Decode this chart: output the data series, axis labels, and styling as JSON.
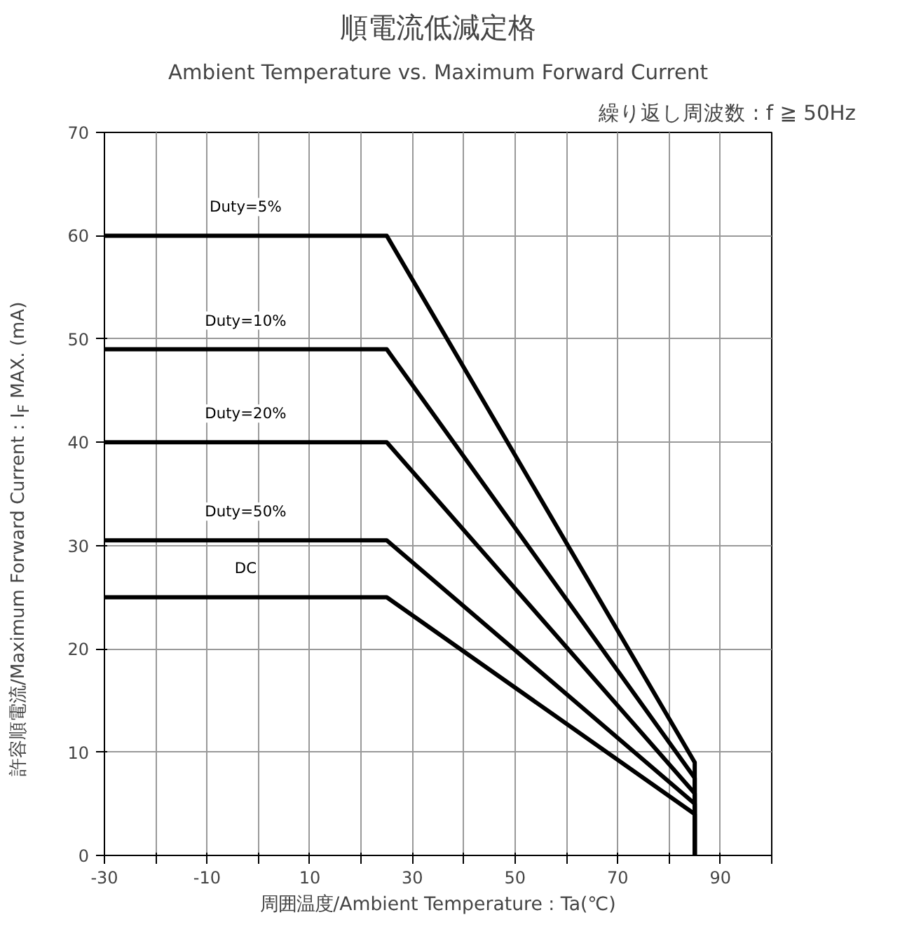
{
  "chart_data": {
    "type": "line",
    "title": "順電流低減定格",
    "subtitle": "Ambient Temperature vs. Maximum Forward Current",
    "xlabel": "周囲温度/Ambient Temperature : Ta(℃)",
    "ylabel": "許容順電流/Maximum Forward Current : I$_{F}$ MAX. (mA)",
    "annotations": [
      "繰り返し周波数 : f ≧ 50Hz"
    ],
    "series": [
      {
        "name": "Duty=5%",
        "color": "#000000",
        "x": [
          -30,
          25,
          85,
          85
        ],
        "values": [
          60,
          60,
          9,
          0
        ]
      },
      {
        "name": "Duty=10%",
        "color": "#000000",
        "x": [
          -30,
          25,
          85,
          85
        ],
        "values": [
          49,
          49,
          7.5,
          0
        ]
      },
      {
        "name": "Duty=20%",
        "color": "#000000",
        "x": [
          -30,
          25,
          85,
          85
        ],
        "values": [
          40,
          40,
          6,
          0
        ]
      },
      {
        "name": "Duty=50%",
        "color": "#000000",
        "x": [
          -30,
          25,
          85,
          85
        ],
        "values": [
          30.5,
          30.5,
          5,
          0
        ]
      },
      {
        "name": "DC",
        "color": "#000000",
        "x": [
          -30,
          25,
          85,
          85
        ],
        "values": [
          25,
          25,
          4,
          0
        ]
      }
    ],
    "xlim": [
      -30,
      100
    ],
    "ylim": [
      0,
      70
    ],
    "xticks": [
      -30,
      {
        "value": -20,
        "label": null
      },
      -10,
      {
        "value": 0,
        "label": null
      },
      10,
      {
        "value": 20,
        "label": null
      },
      30,
      {
        "value": 40,
        "label": null
      },
      50,
      {
        "value": 60,
        "label": null
      },
      70,
      {
        "value": 80,
        "label": null
      },
      90,
      {
        "value": 100,
        "label": null
      }
    ],
    "yticks": [
      0,
      10,
      20,
      30,
      40,
      50,
      60,
      70
    ],
    "grid": true,
    "marker": "none",
    "line_style": "solid"
  }
}
